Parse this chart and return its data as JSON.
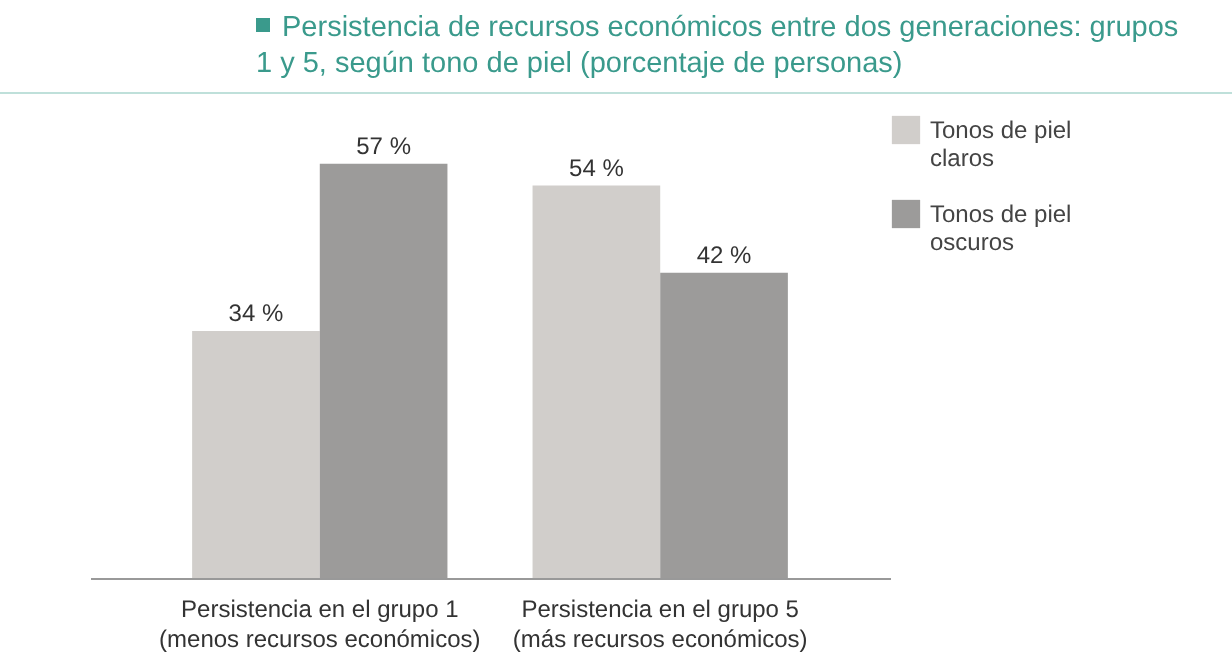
{
  "chart_data": {
    "type": "bar",
    "title": "Persistencia de recursos económicos entre dos generaciones: grupos 1 y 5, según tono de piel (porcentaje de personas)",
    "categories": [
      "Persistencia en el grupo 1\n(menos recursos económicos)",
      "Persistencia en el grupo 5\n(más recursos económicos)"
    ],
    "series": [
      {
        "name": "Tonos de piel claros",
        "color": "#d1cecb",
        "values": [
          34,
          54
        ],
        "value_labels": [
          "34 %",
          "54 %"
        ]
      },
      {
        "name": "Tonos de piel oscuros",
        "color": "#9c9b9a",
        "values": [
          57,
          42
        ],
        "value_labels": [
          "57 %",
          "42 %"
        ]
      }
    ],
    "legend": "top right",
    "grid": false
  }
}
